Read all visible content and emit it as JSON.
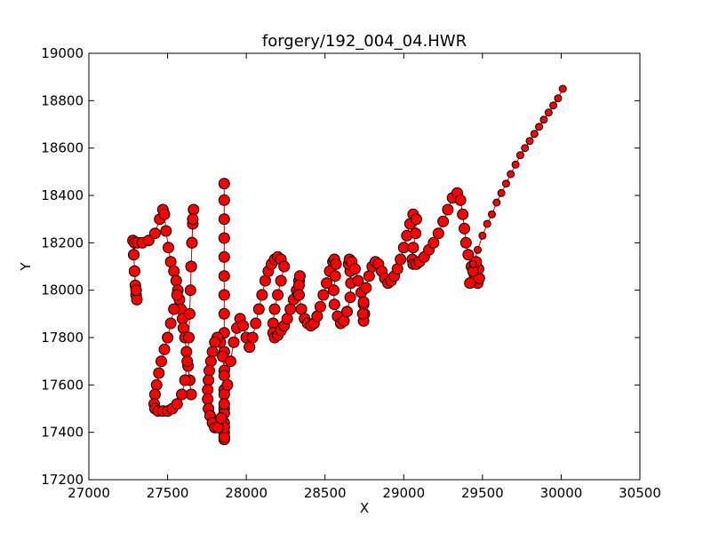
{
  "chart_data": {
    "type": "scatter",
    "title": "forgery/192_004_04.HWR",
    "xlabel": "X",
    "ylabel": "Y",
    "xlim": [
      27000,
      30500
    ],
    "ylim": [
      17200,
      19000
    ],
    "x_ticks": [
      27000,
      27500,
      28000,
      28500,
      29000,
      29500,
      30000,
      30500
    ],
    "y_ticks": [
      17200,
      17400,
      17600,
      17800,
      18000,
      18200,
      18400,
      18600,
      18800,
      19000
    ],
    "grid": false,
    "marker_color": "#ff0000",
    "marker_edge_color": "#000000",
    "line_color": "#c00000",
    "strokes": [
      {
        "x": [
          27280,
          27285,
          27290,
          27295,
          27300,
          27305,
          27300,
          27290,
          27285,
          27290,
          27310,
          27340,
          27380,
          27420,
          27450,
          27470,
          27480,
          27490,
          27505,
          27520,
          27540,
          27555,
          27565,
          27575,
          27585,
          27595,
          27600,
          27610,
          27620,
          27630,
          27640,
          27650
        ],
        "y": [
          18210,
          18150,
          18080,
          18020,
          17980,
          17960,
          18000,
          18080,
          18150,
          18200,
          18200,
          18200,
          18210,
          18240,
          18300,
          18340,
          18320,
          18250,
          18180,
          18120,
          18080,
          18040,
          18000,
          17960,
          17920,
          17880,
          17840,
          17800,
          17740,
          17680,
          17620,
          17560
        ]
      },
      {
        "x": [
          27560,
          27540,
          27520,
          27500,
          27480,
          27460,
          27445,
          27430,
          27420,
          27415,
          27420,
          27440,
          27470,
          27500,
          27530,
          27560,
          27590,
          27610,
          27625,
          27635,
          27640,
          27645,
          27650,
          27655,
          27660,
          27665,
          27660,
          27655,
          27650
        ],
        "y": [
          17980,
          17920,
          17860,
          17800,
          17750,
          17700,
          17650,
          17600,
          17560,
          17520,
          17500,
          17490,
          17490,
          17490,
          17500,
          17520,
          17560,
          17620,
          17700,
          17800,
          17900,
          18000,
          18100,
          18200,
          18280,
          18340,
          18300,
          18200,
          18100
        ]
      },
      {
        "x": [
          27860,
          27860,
          27860,
          27860,
          27860,
          27860,
          27860,
          27860,
          27860,
          27860,
          27860,
          27860,
          27860,
          27860,
          27860,
          27860,
          27860,
          27860,
          27860,
          27860,
          27860,
          27860,
          27850,
          27835,
          27815,
          27800,
          27785,
          27775,
          27765,
          27760,
          27755,
          27755,
          27760,
          27770,
          27785,
          27800,
          27820,
          27840,
          27860,
          27880,
          27900,
          27920,
          27940,
          27960,
          27980,
          28000,
          28020
        ],
        "y": [
          18450,
          18380,
          18300,
          18220,
          18140,
          18060,
          17980,
          17900,
          17820,
          17740,
          17660,
          17580,
          17500,
          17440,
          17400,
          17380,
          17370,
          17380,
          17420,
          17480,
          17560,
          17640,
          17720,
          17780,
          17800,
          17780,
          17740,
          17700,
          17660,
          17620,
          17580,
          17540,
          17500,
          17470,
          17440,
          17420,
          17420,
          17460,
          17520,
          17600,
          17700,
          17780,
          17840,
          17880,
          17850,
          17800,
          17760
        ]
      },
      {
        "x": [
          28020,
          28040,
          28060,
          28080,
          28100,
          28120,
          28140,
          28160,
          28180,
          28200,
          28220,
          28240,
          28220,
          28200,
          28180,
          28170,
          28170,
          28180,
          28200,
          28220,
          28240,
          28260,
          28280,
          28300,
          28320,
          28335,
          28340,
          28335,
          28330
        ],
        "y": [
          17760,
          17800,
          17860,
          17920,
          17980,
          18040,
          18080,
          18110,
          18130,
          18140,
          18130,
          18100,
          18040,
          17980,
          17920,
          17860,
          17820,
          17800,
          17810,
          17830,
          17850,
          17880,
          17920,
          17960,
          18000,
          18040,
          18060,
          18020,
          17980
        ]
      },
      {
        "x": [
          28335,
          28350,
          28370,
          28390,
          28410,
          28430,
          28450,
          28470,
          28490,
          28510,
          28530,
          28550,
          28560,
          28570,
          28565,
          28555,
          28560,
          28580,
          28600,
          28620,
          28640,
          28660,
          28665,
          28660,
          28650,
          28655,
          28670,
          28690,
          28710,
          28730,
          28745,
          28750,
          28745,
          28740,
          28745,
          28760,
          28780,
          28800,
          28820,
          28840,
          28860,
          28880,
          28900,
          28920,
          28940,
          28960,
          28980,
          29000,
          29020,
          29040,
          29060,
          29080,
          29075,
          29060,
          29055,
          29060,
          29080,
          29100,
          29130,
          29160,
          29190,
          29220,
          29250,
          29280,
          29310,
          29340,
          29360,
          29375,
          29385,
          29395,
          29410,
          29430,
          29450,
          29470,
          29480,
          29475,
          29460,
          29440,
          29420
        ],
        "y": [
          17980,
          17920,
          17880,
          17860,
          17850,
          17860,
          17890,
          17930,
          17980,
          18030,
          18080,
          18120,
          18130,
          18110,
          18060,
          18000,
          17940,
          17890,
          17860,
          17870,
          17910,
          17970,
          18030,
          18080,
          18110,
          18130,
          18120,
          18090,
          18040,
          17990,
          17940,
          17900,
          17870,
          17900,
          17950,
          18010,
          18060,
          18100,
          18120,
          18110,
          18080,
          18050,
          18030,
          18040,
          18060,
          18090,
          18130,
          18180,
          18230,
          18280,
          18320,
          18300,
          18240,
          18180,
          18130,
          18110,
          18110,
          18120,
          18140,
          18170,
          18200,
          18240,
          18290,
          18340,
          18390,
          18410,
          18380,
          18320,
          18260,
          18200,
          18150,
          18100,
          18060,
          18030,
          18050,
          18090,
          18120,
          18080,
          18030
        ]
      },
      {
        "x": [
          29440,
          29470,
          29500,
          29530,
          29560,
          29590,
          29620,
          29650,
          29680,
          29710,
          29740,
          29770,
          29800,
          29830,
          29860,
          29890,
          29920,
          29950,
          29980,
          30010
        ],
        "y": [
          18110,
          18170,
          18230,
          18280,
          18320,
          18370,
          18410,
          18450,
          18490,
          18530,
          18570,
          18600,
          18630,
          18660,
          18690,
          18720,
          18750,
          18780,
          18810,
          18850
        ]
      }
    ]
  }
}
